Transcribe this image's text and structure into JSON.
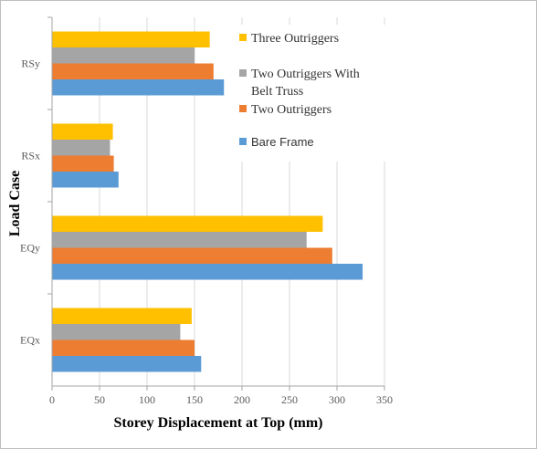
{
  "chart_data": {
    "type": "bar",
    "orientation": "horizontal",
    "xlabel": "Storey Displacement at Top (mm)",
    "ylabel": "Load Case",
    "xlim": [
      0,
      350
    ],
    "x_ticks": [
      0,
      50,
      100,
      150,
      200,
      250,
      300,
      350
    ],
    "grid": "vertical major gridlines",
    "legend_placement": "top-right",
    "categories": [
      "EQx",
      "EQy",
      "RSx",
      "RSy"
    ],
    "series": [
      {
        "name": "Bare Frame",
        "color": "#5B9BD5",
        "values": [
          157,
          327,
          70,
          181
        ]
      },
      {
        "name": "Two Outriggers",
        "color": "#ED7D31",
        "values": [
          150,
          295,
          65,
          170
        ]
      },
      {
        "name": "Two Outriggers With Belt  Truss",
        "color": "#A5A5A5",
        "values": [
          135,
          268,
          61,
          150
        ]
      },
      {
        "name": "Three Outriggers",
        "color": "#FFC000",
        "values": [
          147,
          285,
          64,
          166
        ]
      }
    ],
    "legend": [
      {
        "series": "Three Outriggers",
        "lines": [
          "Three Outriggers"
        ]
      },
      {
        "series": "Two Outriggers With Belt  Truss",
        "lines": [
          "Two Outriggers With",
          "Belt  Truss"
        ]
      },
      {
        "series": "Two Outriggers",
        "lines": [
          "Two Outriggers"
        ]
      },
      {
        "series": "Bare Frame",
        "lines": [
          "Bare Frame"
        ]
      }
    ]
  }
}
